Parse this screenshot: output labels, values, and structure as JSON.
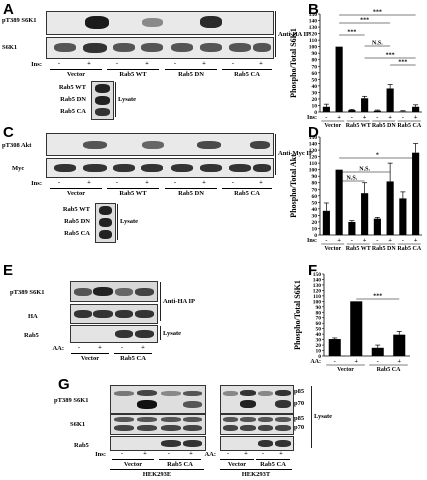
{
  "panels": {
    "A": {
      "letter": "A",
      "rows": [
        "pT389 S6K1",
        "S6K1"
      ],
      "ip": "Anti-HA IP",
      "ins": "Ins:",
      "minus": "-",
      "plus": "+",
      "groups": [
        "Vector",
        "Rab5 WT",
        "Rab5 DN",
        "Rab5 CA"
      ],
      "lysate_rows": [
        "Rab5 WT",
        "Rab5 DN",
        "Rab5 CA"
      ],
      "lysate": "Lysate"
    },
    "B": {
      "letter": "B"
    },
    "C": {
      "letter": "C",
      "rows": [
        "pT308 Akt",
        "Myc"
      ],
      "ip": "Anti-Myc IP",
      "ins": "Ins:",
      "minus": "-",
      "plus": "+",
      "groups": [
        "Vector",
        "Rab5 WT",
        "Rab5 DN",
        "Rab5 CA"
      ],
      "lysate_rows": [
        "Rab5 WT",
        "Rab5 DN",
        "Rab5 CA"
      ],
      "lysate": "Lysate"
    },
    "D": {
      "letter": "D"
    },
    "E": {
      "letter": "E",
      "rows": [
        "pT389 S6K1",
        "HA",
        "Rab5"
      ],
      "ip": "Anti-HA IP",
      "lysate": "Lysate",
      "aa": "AA:",
      "minus": "-",
      "plus": "+",
      "groups": [
        "Vector",
        "Rab5 CA"
      ]
    },
    "F": {
      "letter": "F"
    },
    "G": {
      "letter": "G",
      "rows": [
        "pT389 S6K1",
        "S6K1",
        "Rab5"
      ],
      "ins": "Ins:",
      "aa": "AA:",
      "minus": "-",
      "plus": "+",
      "groups": [
        "Vector",
        "Rab5 CA"
      ],
      "cells": [
        "HEK293E",
        "HEK293T"
      ],
      "p85": "p85",
      "p70": "p70",
      "lysate": "Lysate"
    }
  },
  "chart_data": [
    {
      "type": "bar",
      "panel": "B",
      "ylabel": "Phospho/Total S6K1",
      "ylim": [
        0,
        150
      ],
      "yticks": [
        "0",
        "10",
        "20",
        "30",
        "40",
        "50",
        "60",
        "70",
        "80",
        "90",
        "100",
        "110",
        "120",
        "130",
        "140",
        "150"
      ],
      "treat_label": "Ins:",
      "treatments": [
        "-",
        "+",
        "-",
        "+",
        "-",
        "+",
        "-",
        "+"
      ],
      "groups": [
        "Vector",
        "Rab5 WT",
        "Rab5 DN",
        "Rab5 CA"
      ],
      "values": [
        8,
        100,
        3,
        21,
        2,
        36,
        1,
        8
      ],
      "errors": [
        4,
        0,
        1,
        3,
        1,
        6,
        1,
        3
      ],
      "significance": [
        {
          "from": 1,
          "to": 3,
          "label": "***"
        },
        {
          "from": 1,
          "to": 5,
          "label": "***"
        },
        {
          "from": 1,
          "to": 7,
          "label": "***"
        },
        {
          "from": 3,
          "to": 5,
          "label": "N.S."
        },
        {
          "from": 3,
          "to": 7,
          "label": "***"
        },
        {
          "from": 5,
          "to": 7,
          "label": "***"
        }
      ]
    },
    {
      "type": "bar",
      "panel": "D",
      "ylabel": "Phospho/Total Akt",
      "ylim": [
        0,
        150
      ],
      "yticks": [
        "0",
        "10",
        "20",
        "30",
        "40",
        "50",
        "60",
        "70",
        "80",
        "90",
        "100",
        "110",
        "120",
        "130",
        "140",
        "150"
      ],
      "treat_label": "Ins:",
      "treatments": [
        "-",
        "+",
        "-",
        "+",
        "-",
        "+",
        "-",
        "+"
      ],
      "groups": [
        "Vector",
        "Rab5 WT",
        "Rab5 DN",
        "Rab5 CA"
      ],
      "values": [
        37,
        100,
        20,
        64,
        25,
        82,
        56,
        126
      ],
      "errors": [
        12,
        0,
        2,
        16,
        2,
        28,
        10,
        14
      ],
      "significance": [
        {
          "from": 1,
          "to": 3,
          "label": "N.S."
        },
        {
          "from": 1,
          "to": 5,
          "label": "N.S."
        },
        {
          "from": 1,
          "to": 7,
          "label": "*"
        }
      ]
    },
    {
      "type": "bar",
      "panel": "F",
      "ylabel": "Phospho/Total S6K1",
      "ylim": [
        0,
        150
      ],
      "yticks": [
        "0",
        "10",
        "20",
        "30",
        "40",
        "50",
        "60",
        "70",
        "80",
        "90",
        "100",
        "110",
        "120",
        "130",
        "140",
        "150"
      ],
      "treat_label": "AA:",
      "treatments": [
        "-",
        "+",
        "-",
        "+"
      ],
      "groups": [
        "Vector",
        "Rab5 CA"
      ],
      "values": [
        31,
        100,
        15,
        39
      ],
      "errors": [
        2,
        0,
        5,
        6
      ],
      "significance": [
        {
          "from": 1,
          "to": 3,
          "label": "***"
        }
      ]
    }
  ]
}
